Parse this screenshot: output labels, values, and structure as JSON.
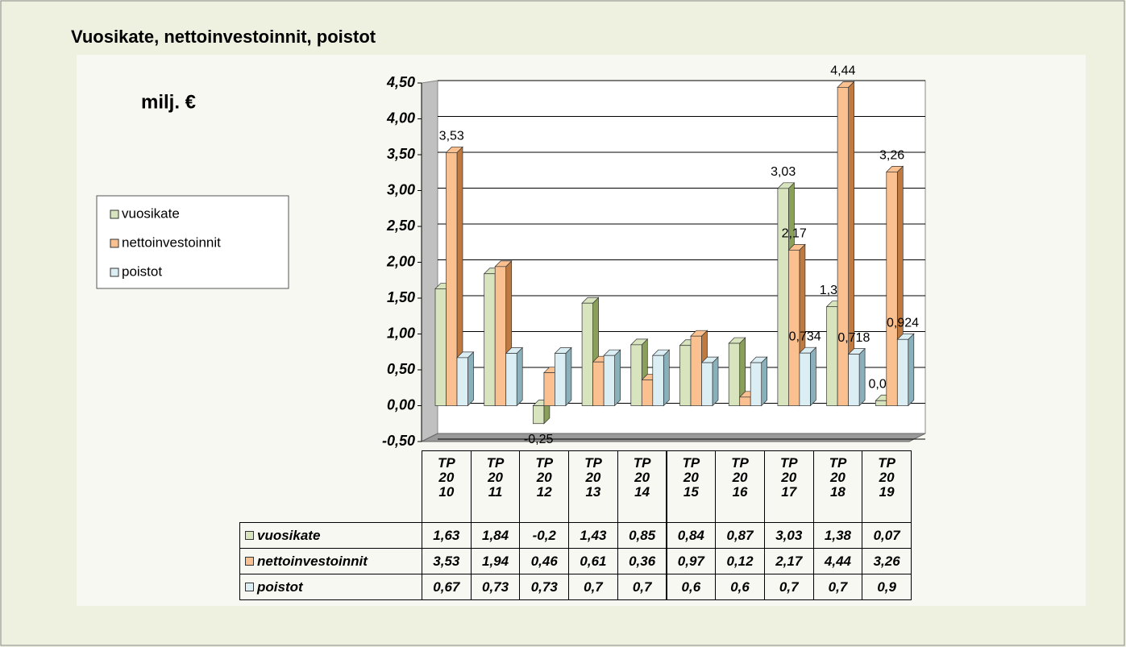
{
  "chart_data": {
    "type": "bar3d",
    "title": "Vuosikate, nettoinvestoinnit, poistot",
    "unit_label": "milj. €",
    "categories": [
      "TP 20 10",
      "TP 20 11",
      "TP 20 12",
      "TP 20 13",
      "TP 20 14",
      "TP 20 15",
      "TP 20 16",
      "TP 20 17",
      "TP 20 18",
      "TP 20 19"
    ],
    "series": [
      {
        "name": "vuosikate",
        "color": "#d7e4bd",
        "side": "#8aa05a",
        "values": [
          1.63,
          1.84,
          -0.25,
          1.43,
          0.85,
          0.84,
          0.87,
          3.03,
          1.38,
          0.07
        ],
        "value_labels": [
          null,
          null,
          "-0,25",
          null,
          null,
          null,
          null,
          "3,03",
          "1,38",
          "0,07"
        ]
      },
      {
        "name": "nettoinvestoinnit",
        "color": "#fac090",
        "side": "#c07a40",
        "values": [
          3.53,
          1.94,
          0.46,
          0.61,
          0.36,
          0.97,
          0.12,
          2.17,
          4.44,
          3.26
        ],
        "value_labels": [
          "3,53",
          null,
          null,
          null,
          null,
          null,
          null,
          "2,17",
          "4,44",
          "3,26"
        ]
      },
      {
        "name": "poistot",
        "color": "#dbeef4",
        "side": "#8ab0bc",
        "values": [
          0.67,
          0.73,
          0.73,
          0.7,
          0.7,
          0.6,
          0.6,
          0.734,
          0.718,
          0.924
        ],
        "value_labels": [
          null,
          null,
          null,
          null,
          null,
          null,
          null,
          "0,734",
          "0,718",
          "0,924"
        ]
      }
    ],
    "ylim": [
      -0.5,
      4.5
    ],
    "yticks": [
      {
        "value": -0.5,
        "label": "-0,50"
      },
      {
        "value": 0,
        "label": "0,00"
      },
      {
        "value": 0.5,
        "label": "0,50"
      },
      {
        "value": 1,
        "label": "1,00"
      },
      {
        "value": 1.5,
        "label": "1,50"
      },
      {
        "value": 2,
        "label": "2,00"
      },
      {
        "value": 2.5,
        "label": "2,50"
      },
      {
        "value": 3,
        "label": "3,00"
      },
      {
        "value": 3.5,
        "label": "3,50"
      },
      {
        "value": 4,
        "label": "4,00"
      },
      {
        "value": 4.5,
        "label": "4,50"
      }
    ],
    "grid": true,
    "legend": "left",
    "table": {
      "rows": [
        {
          "name": "vuosikate",
          "cells": [
            "1,63",
            "1,84",
            "-0,2",
            "1,43",
            "0,85",
            "0,84",
            "0,87",
            "3,03",
            "1,38",
            "0,07"
          ]
        },
        {
          "name": "nettoinvestoinnit",
          "cells": [
            "3,53",
            "1,94",
            "0,46",
            "0,61",
            "0,36",
            "0,97",
            "0,12",
            "2,17",
            "4,44",
            "3,26"
          ]
        },
        {
          "name": "poistot",
          "cells": [
            "0,67",
            "0,73",
            "0,73",
            "0,7",
            "0,7",
            "0,6",
            "0,6",
            "0,7",
            "0,7",
            "0,9"
          ]
        }
      ]
    }
  }
}
